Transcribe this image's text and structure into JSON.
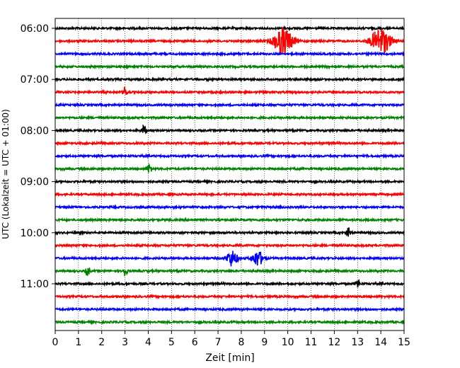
{
  "chart_data": {
    "type": "line",
    "title": "",
    "xlabel": "Zeit  [min]",
    "ylabel": "UTC (Lokalzeit = UTC + 01:00)",
    "xlim": [
      0,
      15
    ],
    "x_ticks": [
      0,
      1,
      2,
      3,
      4,
      5,
      6,
      7,
      8,
      9,
      10,
      11,
      12,
      13,
      14,
      15
    ],
    "x_tick_labels": [
      "0",
      "1",
      "2",
      "3",
      "4",
      "5",
      "6",
      "7",
      "8",
      "9",
      "10",
      "11",
      "12",
      "13",
      "14",
      "15"
    ],
    "y_tick_labels": [
      "06:00",
      "07:00",
      "08:00",
      "09:00",
      "10:00",
      "11:00"
    ],
    "grid": {
      "x": true,
      "y": false,
      "style": "dotted"
    },
    "trace_colors": [
      "#000000",
      "#ff0000",
      "#0000ff",
      "#008000"
    ],
    "traces": [
      {
        "start": "06:00",
        "events": []
      },
      {
        "start": "06:15",
        "events": [
          {
            "t": 9.8,
            "amplitude": "large"
          },
          {
            "t": 14.0,
            "amplitude": "large"
          }
        ]
      },
      {
        "start": "06:30",
        "events": []
      },
      {
        "start": "06:45",
        "events": []
      },
      {
        "start": "07:00",
        "events": []
      },
      {
        "start": "07:15",
        "events": [
          {
            "t": 3.0,
            "amplitude": "small"
          }
        ]
      },
      {
        "start": "07:30",
        "events": []
      },
      {
        "start": "07:45",
        "events": []
      },
      {
        "start": "08:00",
        "events": [
          {
            "t": 3.8,
            "amplitude": "small"
          }
        ]
      },
      {
        "start": "08:15",
        "events": []
      },
      {
        "start": "08:30",
        "events": []
      },
      {
        "start": "08:45",
        "events": [
          {
            "t": 4.05,
            "amplitude": "small"
          }
        ]
      },
      {
        "start": "09:00",
        "events": []
      },
      {
        "start": "09:15",
        "events": []
      },
      {
        "start": "09:30",
        "events": []
      },
      {
        "start": "09:45",
        "events": []
      },
      {
        "start": "10:00",
        "events": [
          {
            "t": 12.6,
            "amplitude": "small"
          }
        ]
      },
      {
        "start": "10:15",
        "events": []
      },
      {
        "start": "10:30",
        "events": [
          {
            "t": 7.6,
            "amplitude": "medium"
          },
          {
            "t": 8.7,
            "amplitude": "medium"
          }
        ]
      },
      {
        "start": "10:45",
        "events": [
          {
            "t": 1.4,
            "amplitude": "small"
          },
          {
            "t": 3.0,
            "amplitude": "small"
          }
        ]
      },
      {
        "start": "11:00",
        "events": [
          {
            "t": 13.0,
            "amplitude": "small"
          }
        ]
      },
      {
        "start": "11:15",
        "events": []
      },
      {
        "start": "11:30",
        "events": []
      },
      {
        "start": "11:45",
        "events": []
      }
    ]
  }
}
